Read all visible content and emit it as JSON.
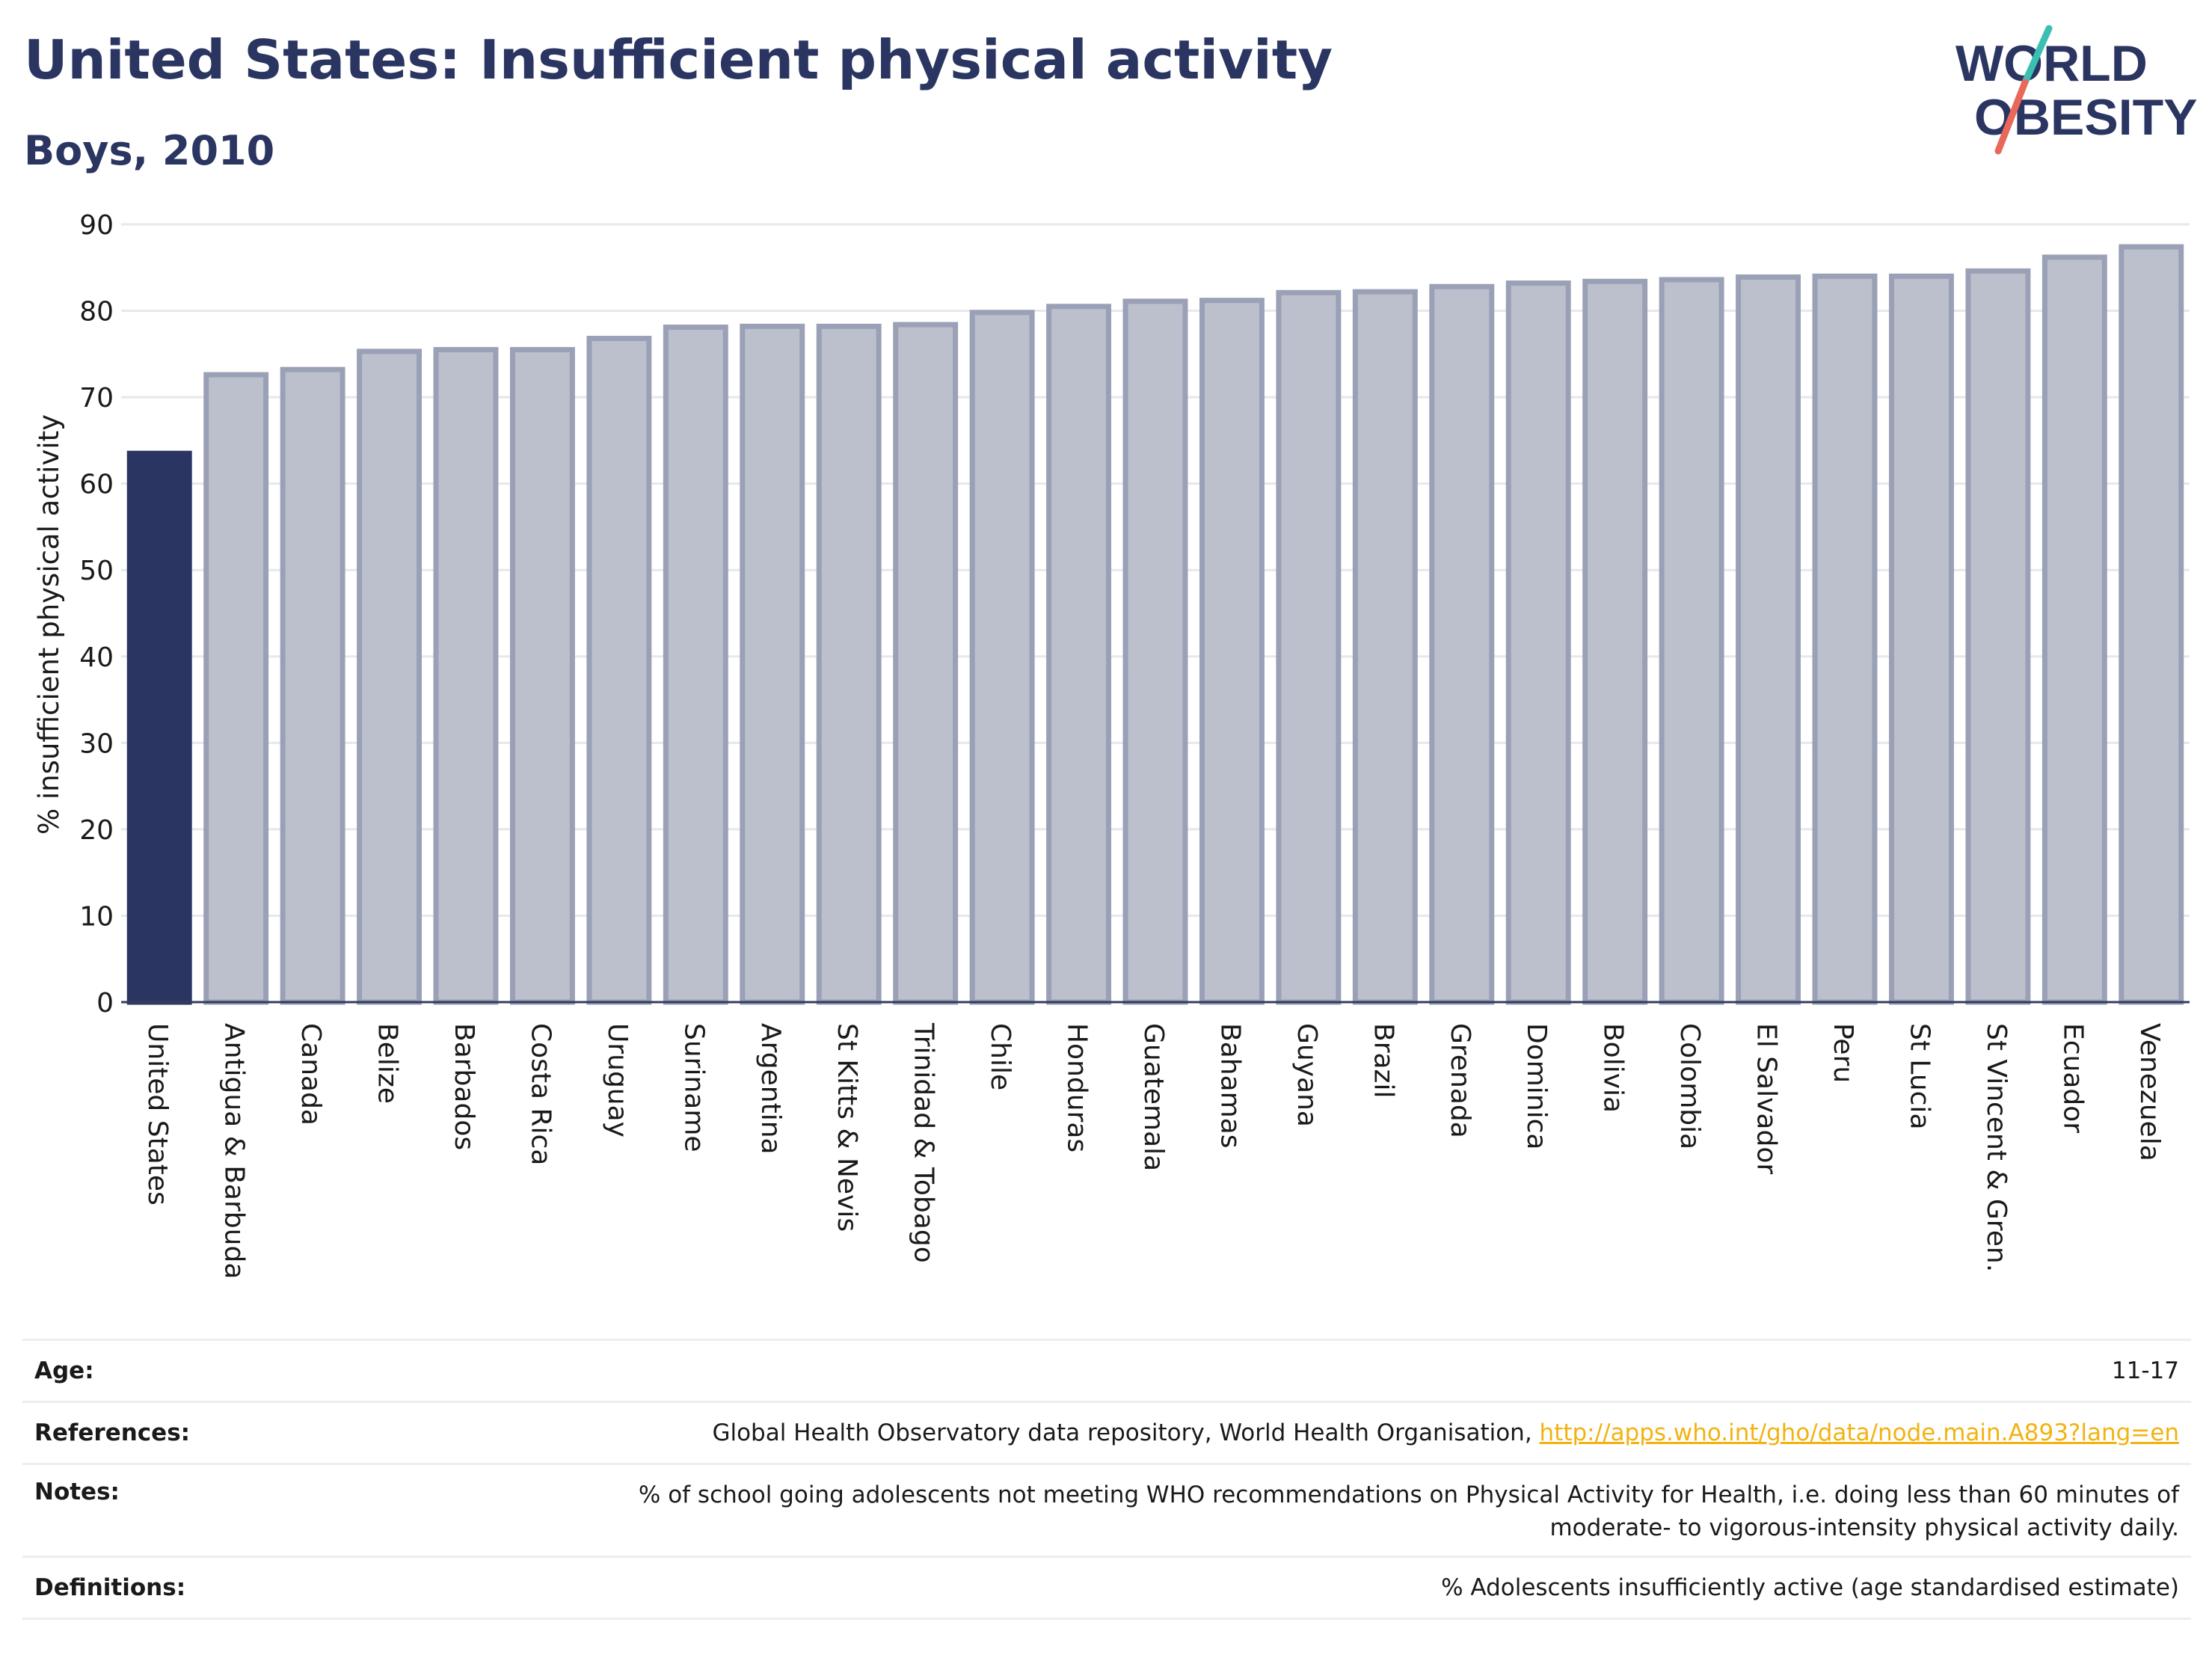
{
  "header": {
    "title": "United States: Insufficient physical activity",
    "subtitle": "Boys, 2010"
  },
  "logo": {
    "line1": "WORLD",
    "line2": "OBESITY",
    "colors": {
      "text": "#2a3561",
      "slash_teal": "#3bbfb2",
      "slash_coral": "#e8695a"
    }
  },
  "chart_data": {
    "type": "bar",
    "ylabel": "% insufficient physical activity",
    "ylim": [
      0,
      90
    ],
    "yticks": [
      0,
      10,
      20,
      30,
      40,
      50,
      60,
      70,
      80,
      90
    ],
    "grid": true,
    "highlight_index": 0,
    "colors": {
      "highlight": "#2b3562",
      "bar_fill": "#bcc0cd",
      "bar_stroke": "#9aa0b6"
    },
    "categories": [
      "United States",
      "Antigua & Barbuda",
      "Canada",
      "Belize",
      "Barbados",
      "Costa Rica",
      "Uruguay",
      "Suriname",
      "Argentina",
      "St Kitts & Nevis",
      "Trinidad & Tobago",
      "Chile",
      "Honduras",
      "Guatemala",
      "Bahamas",
      "Guyana",
      "Brazil",
      "Grenada",
      "Dominica",
      "Bolivia",
      "Colombia",
      "El Salvador",
      "Peru",
      "St Lucia",
      "St Vincent & Gren.",
      "Ecuador",
      "Venezuela"
    ],
    "values": [
      63.5,
      72.6,
      73.2,
      75.3,
      75.5,
      75.5,
      76.8,
      78.1,
      78.2,
      78.2,
      78.4,
      79.8,
      80.5,
      81.1,
      81.2,
      82.1,
      82.2,
      82.8,
      83.2,
      83.4,
      83.6,
      83.9,
      84.0,
      84.0,
      84.6,
      86.2,
      87.4
    ]
  },
  "info": {
    "age": {
      "label": "Age:",
      "value": "11-17"
    },
    "references": {
      "label": "References:",
      "value": "Global Health Observatory data repository, World Health Organisation, ",
      "link": "http://apps.who.int/gho/data/node.main.A893?lang=en"
    },
    "notes": {
      "label": "Notes:",
      "line1": "% of school going adolescents not meeting WHO recommendations on Physical Activity for Health, i.e. doing less than 60 minutes of",
      "line2": "moderate- to vigorous-intensity physical activity daily."
    },
    "definitions": {
      "label": "Definitions:",
      "value": "% Adolescents insufficiently active (age standardised estimate)"
    }
  }
}
